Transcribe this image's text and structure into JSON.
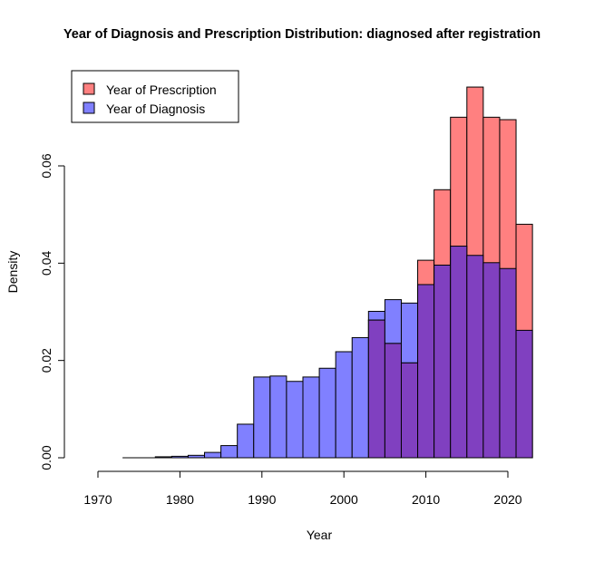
{
  "chart_data": {
    "type": "histogram",
    "title": "Year of Diagnosis and Prescription Distribution: diagnosed after registration",
    "xlabel": "Year",
    "ylabel": "Density",
    "xlim": [
      1968,
      2025
    ],
    "ylim": [
      0,
      0.076
    ],
    "x_ticks": [
      1970,
      1980,
      1990,
      2000,
      2010,
      2020
    ],
    "y_ticks": [
      0.0,
      0.02,
      0.04,
      0.06
    ],
    "y_tick_labels": [
      "0.00",
      "0.02",
      "0.04",
      "0.06"
    ],
    "bin_width": 2,
    "series": [
      {
        "name": "Year of Prescription",
        "color": "#ff8080",
        "bins": [
          {
            "x0": 2003,
            "x1": 2005,
            "value": 0.0283
          },
          {
            "x0": 2005,
            "x1": 2007,
            "value": 0.0235
          },
          {
            "x0": 2007,
            "x1": 2009,
            "value": 0.0195
          },
          {
            "x0": 2009,
            "x1": 2011,
            "value": 0.0406
          },
          {
            "x0": 2011,
            "x1": 2013,
            "value": 0.0551
          },
          {
            "x0": 2013,
            "x1": 2015,
            "value": 0.07
          },
          {
            "x0": 2015,
            "x1": 2017,
            "value": 0.0762
          },
          {
            "x0": 2017,
            "x1": 2019,
            "value": 0.07
          },
          {
            "x0": 2019,
            "x1": 2021,
            "value": 0.0695
          },
          {
            "x0": 2021,
            "x1": 2023,
            "value": 0.048
          }
        ]
      },
      {
        "name": "Year of Diagnosis",
        "color": "#8080ff",
        "bins": [
          {
            "x0": 1977,
            "x1": 1979,
            "value": 0.0002
          },
          {
            "x0": 1979,
            "x1": 1981,
            "value": 0.0003
          },
          {
            "x0": 1981,
            "x1": 1983,
            "value": 0.0005
          },
          {
            "x0": 1983,
            "x1": 1985,
            "value": 0.0011
          },
          {
            "x0": 1985,
            "x1": 1987,
            "value": 0.0025
          },
          {
            "x0": 1987,
            "x1": 1989,
            "value": 0.0069
          },
          {
            "x0": 1989,
            "x1": 1991,
            "value": 0.0166
          },
          {
            "x0": 1991,
            "x1": 1993,
            "value": 0.0168
          },
          {
            "x0": 1993,
            "x1": 1995,
            "value": 0.0157
          },
          {
            "x0": 1995,
            "x1": 1997,
            "value": 0.0166
          },
          {
            "x0": 1997,
            "x1": 1999,
            "value": 0.0184
          },
          {
            "x0": 1999,
            "x1": 2001,
            "value": 0.0218
          },
          {
            "x0": 2001,
            "x1": 2003,
            "value": 0.0247
          },
          {
            "x0": 2003,
            "x1": 2005,
            "value": 0.0301
          },
          {
            "x0": 2005,
            "x1": 2007,
            "value": 0.0325
          },
          {
            "x0": 2007,
            "x1": 2009,
            "value": 0.0318
          },
          {
            "x0": 2009,
            "x1": 2011,
            "value": 0.0356
          },
          {
            "x0": 2011,
            "x1": 2013,
            "value": 0.0396
          },
          {
            "x0": 2013,
            "x1": 2015,
            "value": 0.0435
          },
          {
            "x0": 2015,
            "x1": 2017,
            "value": 0.0416
          },
          {
            "x0": 2017,
            "x1": 2019,
            "value": 0.0401
          },
          {
            "x0": 2019,
            "x1": 2021,
            "value": 0.0389
          },
          {
            "x0": 2021,
            "x1": 2023,
            "value": 0.0262
          }
        ]
      }
    ],
    "overlap_color": "#8040c0",
    "legend_position": "top-left",
    "grid": false
  }
}
